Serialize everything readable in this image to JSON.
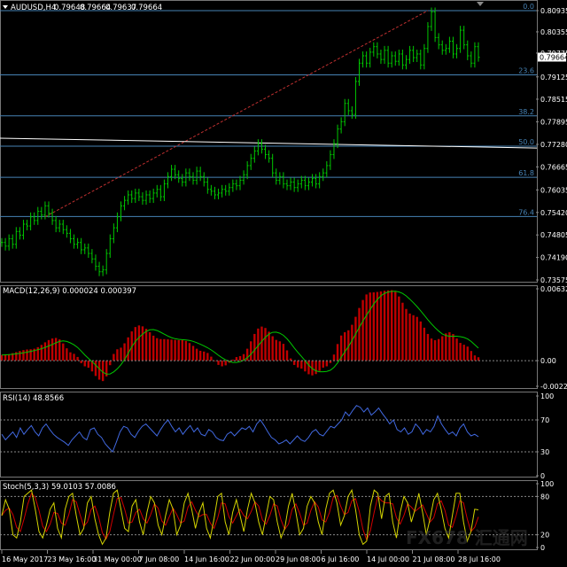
{
  "colors": {
    "background": "#000000",
    "candle_up": "#00C800",
    "fib_line": "#4682B4",
    "trendline": "#C03030",
    "white_line": "#FFFFFF",
    "macd_hist": "#C00000",
    "macd_signal": "#00C800",
    "rsi_line": "#4169E1",
    "stoch_main": "#D4D400",
    "stoch_signal": "#D00000"
  },
  "chart_data": [
    {
      "type": "line",
      "panel": "price",
      "title": "AUDUSD,H4",
      "ohlc": {
        "open": "0.79648",
        "high": "0.79664",
        "low": "0.79637",
        "close": "0.79664"
      },
      "current_price": "0.79664",
      "y_ticks": [
        "0.80935",
        "0.80355",
        "0.79775",
        "0.79125",
        "0.78515",
        "0.77895",
        "0.77280",
        "0.76665",
        "0.76035",
        "0.75420",
        "0.74805",
        "0.74190",
        "0.73575"
      ],
      "ylim": [
        0.73575,
        0.80935
      ],
      "fibonacci": [
        {
          "label": "0.0",
          "price": 0.80935
        },
        {
          "label": "23.6",
          "price": 0.7918
        },
        {
          "label": "38.2",
          "price": 0.7806
        },
        {
          "label": "50.0",
          "price": 0.7723
        },
        {
          "label": "61.8",
          "price": 0.7638
        },
        {
          "label": "76.4",
          "price": 0.7531
        }
      ],
      "closes": [
        0.746,
        0.745,
        0.747,
        0.7455,
        0.749,
        0.748,
        0.751,
        0.7505,
        0.753,
        0.752,
        0.7545,
        0.7535,
        0.756,
        0.754,
        0.752,
        0.75,
        0.751,
        0.7495,
        0.7485,
        0.747,
        0.7455,
        0.746,
        0.744,
        0.7445,
        0.743,
        0.7415,
        0.7395,
        0.738,
        0.7385,
        0.743,
        0.747,
        0.75,
        0.753,
        0.756,
        0.7575,
        0.759,
        0.758,
        0.7595,
        0.7585,
        0.7575,
        0.759,
        0.758,
        0.7595,
        0.7605,
        0.7585,
        0.762,
        0.764,
        0.766,
        0.7645,
        0.7635,
        0.7625,
        0.765,
        0.764,
        0.763,
        0.7655,
        0.764,
        0.7625,
        0.7605,
        0.76,
        0.759,
        0.7595,
        0.7605,
        0.76,
        0.761,
        0.762,
        0.7615,
        0.763,
        0.7645,
        0.767,
        0.769,
        0.771,
        0.773,
        0.7715,
        0.77,
        0.769,
        0.765,
        0.763,
        0.764,
        0.762,
        0.7615,
        0.7625,
        0.761,
        0.762,
        0.763,
        0.7615,
        0.7625,
        0.7635,
        0.762,
        0.764,
        0.765,
        0.767,
        0.77,
        0.773,
        0.777,
        0.779,
        0.784,
        0.782,
        0.781,
        0.79,
        0.795,
        0.797,
        0.795,
        0.798,
        0.7995,
        0.7975,
        0.796,
        0.7985,
        0.795,
        0.797,
        0.7955,
        0.7975,
        0.7945,
        0.796,
        0.7985,
        0.7965,
        0.7975,
        0.7945,
        0.799,
        0.805,
        0.809,
        0.802,
        0.8,
        0.7985,
        0.799,
        0.801,
        0.7975,
        0.799,
        0.804,
        0.8,
        0.797,
        0.795,
        0.7995,
        0.7966
      ]
    },
    {
      "type": "bar",
      "panel": "macd",
      "title": "MACD(12,26,9) 0.000024 0.000397",
      "y_ticks": [
        "0.006325",
        "0.00",
        "-0.002257"
      ],
      "ylim": [
        -0.002257,
        0.006325
      ],
      "peaks": [
        [
          0,
          0.0005
        ],
        [
          8,
          0.001
        ],
        [
          15,
          0.002
        ],
        [
          20,
          0.0006
        ],
        [
          23,
          -0.0005
        ],
        [
          28,
          -0.0018
        ],
        [
          32,
          0.001
        ],
        [
          38,
          0.0031
        ],
        [
          44,
          0.0019
        ],
        [
          50,
          0.0018
        ],
        [
          56,
          0.0008
        ],
        [
          61,
          -0.0005
        ],
        [
          66,
          0.0004
        ],
        [
          72,
          0.003
        ],
        [
          77,
          0.0017
        ],
        [
          82,
          -0.0006
        ],
        [
          86,
          -0.0013
        ],
        [
          90,
          -0.0005
        ],
        [
          95,
          0.0025
        ],
        [
          102,
          0.006
        ],
        [
          108,
          0.0062
        ],
        [
          114,
          0.004
        ],
        [
          120,
          0.0018
        ],
        [
          124,
          0.0025
        ],
        [
          128,
          0.0014
        ],
        [
          132,
          0.0003
        ]
      ],
      "signal_lag": 3
    },
    {
      "type": "line",
      "panel": "rsi",
      "title": "RSI(14) 48.8566",
      "y_ticks": [
        "100",
        "70",
        "30",
        "0"
      ],
      "ylim": [
        0,
        100
      ],
      "levels": [
        70,
        30
      ],
      "values": [
        52,
        45,
        50,
        55,
        48,
        60,
        52,
        58,
        63,
        55,
        50,
        60,
        65,
        58,
        52,
        48,
        45,
        42,
        38,
        45,
        50,
        55,
        48,
        45,
        58,
        60,
        52,
        48,
        40,
        35,
        30,
        42,
        55,
        62,
        60,
        52,
        48,
        56,
        62,
        65,
        60,
        55,
        50,
        58,
        65,
        70,
        62,
        55,
        60,
        52,
        58,
        63,
        55,
        60,
        52,
        50,
        58,
        55,
        48,
        45,
        44,
        52,
        55,
        50,
        55,
        60,
        58,
        62,
        55,
        65,
        70,
        63,
        55,
        48,
        45,
        40,
        42,
        45,
        40,
        45,
        50,
        45,
        43,
        48,
        55,
        58,
        52,
        50,
        56,
        62,
        60,
        65,
        70,
        80,
        75,
        82,
        88,
        86,
        80,
        85,
        76,
        80,
        85,
        78,
        72,
        65,
        70,
        58,
        55,
        60,
        52,
        55,
        65,
        60,
        52,
        58,
        55,
        62,
        75,
        65,
        58,
        52,
        55,
        50,
        60,
        65,
        55,
        50,
        52,
        49
      ]
    },
    {
      "type": "line",
      "panel": "stochastic",
      "title": "Stoch(5,3,3) 59.0103 57.0086",
      "y_ticks": [
        "100",
        "80",
        "20",
        "0"
      ],
      "ylim": [
        0,
        100
      ],
      "levels": [
        80,
        20
      ],
      "main": [
        50,
        75,
        60,
        20,
        15,
        40,
        80,
        85,
        90,
        60,
        25,
        15,
        35,
        60,
        70,
        30,
        15,
        60,
        80,
        85,
        50,
        20,
        30,
        70,
        80,
        45,
        20,
        5,
        15,
        55,
        85,
        90,
        60,
        30,
        25,
        65,
        75,
        40,
        20,
        55,
        80,
        70,
        35,
        20,
        50,
        75,
        60,
        20,
        35,
        70,
        85,
        60,
        30,
        55,
        70,
        30,
        15,
        45,
        80,
        85,
        40,
        20,
        55,
        75,
        50,
        25,
        60,
        85,
        70,
        40,
        20,
        50,
        80,
        75,
        40,
        15,
        30,
        65,
        85,
        55,
        20,
        30,
        65,
        80,
        70,
        40,
        20,
        60,
        85,
        90,
        70,
        35,
        50,
        80,
        90,
        60,
        20,
        5,
        10,
        65,
        90,
        85,
        45,
        80,
        85,
        40,
        15,
        55,
        80,
        70,
        40,
        60,
        85,
        55,
        20,
        45,
        75,
        85,
        60,
        30,
        15,
        50,
        85,
        85,
        40,
        10,
        25,
        60,
        59
      ]
    },
    {
      "type": "table",
      "panel": "time_axis",
      "x_tick_labels": [
        "16 May 2017",
        "23 May 16:00",
        "31 May 00:00",
        "7 Jun 08:00",
        "14 Jun 16:00",
        "22 Jun 00:00",
        "29 Jun 08:00",
        "6 Jul 16:00",
        "14 Jul 00:00",
        "21 Jul 08:00",
        "28 Jul 16:00"
      ]
    }
  ],
  "watermark": "FX678 汇通网"
}
